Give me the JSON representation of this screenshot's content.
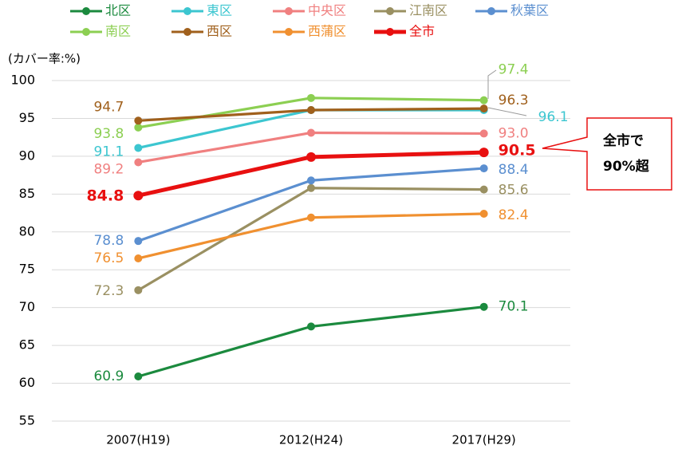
{
  "chart_data": {
    "type": "line",
    "y_axis_label": "(カバー率:%)",
    "categories": [
      "2007(H19)",
      "2012(H24)",
      "2017(H29)"
    ],
    "ylim": [
      55,
      100
    ],
    "yticks": [
      55,
      60,
      65,
      70,
      75,
      80,
      85,
      90,
      95,
      100
    ],
    "grid": true,
    "series": [
      {
        "name": "北区",
        "color": "#1b8a3e",
        "values": [
          60.9,
          67.5,
          70.1
        ],
        "value_labels": [
          "60.9",
          null,
          "70.1"
        ]
      },
      {
        "name": "東区",
        "color": "#3cc6d0",
        "values": [
          91.1,
          96.1,
          96.1
        ],
        "value_labels": [
          "91.1",
          null,
          "96.1"
        ]
      },
      {
        "name": "中央区",
        "color": "#f08080",
        "values": [
          89.2,
          93.1,
          93.0
        ],
        "value_labels": [
          "89.2",
          null,
          "93.0"
        ]
      },
      {
        "name": "江南区",
        "color": "#9a9062",
        "values": [
          72.3,
          85.8,
          85.6
        ],
        "value_labels": [
          "72.3",
          null,
          "85.6"
        ]
      },
      {
        "name": "秋葉区",
        "color": "#5b8fd0",
        "values": [
          78.8,
          86.8,
          88.4
        ],
        "value_labels": [
          "78.8",
          null,
          "88.4"
        ]
      },
      {
        "name": "南区",
        "color": "#8ccf52",
        "values": [
          93.8,
          97.7,
          97.4
        ],
        "value_labels": [
          "93.8",
          null,
          "97.4"
        ]
      },
      {
        "name": "西区",
        "color": "#a0601c",
        "values": [
          94.7,
          96.1,
          96.3
        ],
        "value_labels": [
          "94.7",
          null,
          "96.3"
        ]
      },
      {
        "name": "西蒲区",
        "color": "#f09030",
        "values": [
          76.5,
          81.9,
          82.4
        ],
        "value_labels": [
          "76.5",
          null,
          "82.4"
        ]
      },
      {
        "name": "全市",
        "color": "#e81010",
        "values": [
          84.8,
          89.9,
          90.5
        ],
        "value_labels": [
          "84.8",
          null,
          "90.5"
        ]
      }
    ],
    "annotation": [
      "全市で",
      "90%超"
    ]
  }
}
